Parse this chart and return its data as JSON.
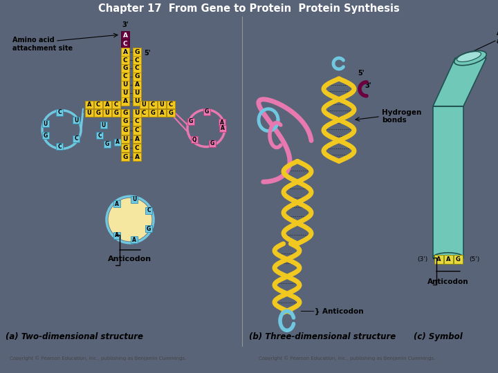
{
  "bg_color": "#f5e6a0",
  "header_color": "#5a6478",
  "title": "Chapter 17  From Gene to Protein  Protein Synthesis",
  "title_color": "white",
  "title_fontsize": 10.5,
  "acc_color": "#6b0040",
  "yellow_color": "#f0c820",
  "yellow_edge": "#b89000",
  "pink_color": "#e878b0",
  "pink_edge": "#c04080",
  "cyan_color": "#70c8e0",
  "cyan_edge": "#3090b0",
  "teal_color": "#70c8b8",
  "teal_edge": "#308878",
  "dark_red": "#6b0040",
  "panel_a_label": "(a) Two-dimensional structure",
  "panel_b_label": "(b) Three-dimensional structure",
  "panel_c_label": "(c) Symbol",
  "label_fs": 8.5,
  "copyright_left": "Copyright © Pearson Education, Inc., publishing as Benjamin Cummings.",
  "copyright_right": "Copyright © Pearson Education, Inc., publishing as Benjamin Cummings."
}
